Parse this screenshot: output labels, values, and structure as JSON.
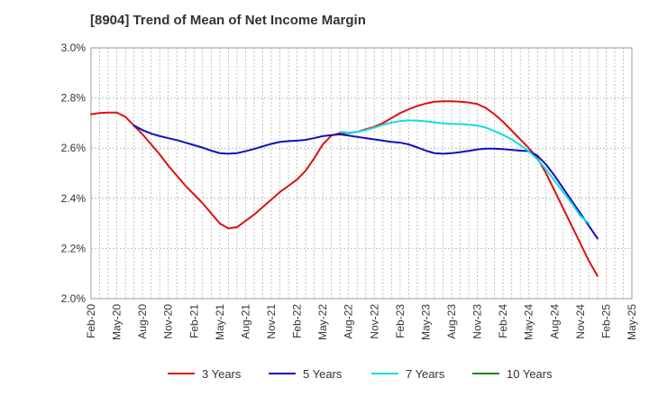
{
  "chart_data": {
    "type": "line",
    "title": "[8904]  Trend of Mean of Net Income Margin",
    "xlabel": "",
    "ylabel": "",
    "x_ticks": [
      "Feb-20",
      "May-20",
      "Aug-20",
      "Nov-20",
      "Feb-21",
      "May-21",
      "Aug-21",
      "Nov-21",
      "Feb-22",
      "May-22",
      "Aug-22",
      "Nov-22",
      "Feb-23",
      "May-23",
      "Aug-23",
      "Nov-23",
      "Feb-24",
      "May-24",
      "Aug-24",
      "Nov-24",
      "Feb-25",
      "May-25"
    ],
    "y_ticks": [
      "2.0%",
      "2.2%",
      "2.4%",
      "2.6%",
      "2.8%",
      "3.0%"
    ],
    "ylim": [
      2.0,
      3.0
    ],
    "grid": true,
    "legend_position": "bottom",
    "series": [
      {
        "name": "3 Years",
        "color": "#dd1111",
        "points": [
          [
            "2020-02",
            2.735
          ],
          [
            "2020-03",
            2.74
          ],
          [
            "2020-04",
            2.742
          ],
          [
            "2020-05",
            2.742
          ],
          [
            "2020-06",
            2.725
          ],
          [
            "2020-07",
            2.69
          ],
          [
            "2020-08",
            2.655
          ],
          [
            "2020-09",
            2.615
          ],
          [
            "2020-10",
            2.575
          ],
          [
            "2020-11",
            2.53
          ],
          [
            "2020-12",
            2.49
          ],
          [
            "2021-01",
            2.45
          ],
          [
            "2021-02",
            2.415
          ],
          [
            "2021-03",
            2.38
          ],
          [
            "2021-04",
            2.34
          ],
          [
            "2021-05",
            2.3
          ],
          [
            "2021-06",
            2.28
          ],
          [
            "2021-07",
            2.285
          ],
          [
            "2021-08",
            2.31
          ],
          [
            "2021-09",
            2.335
          ],
          [
            "2021-10",
            2.365
          ],
          [
            "2021-11",
            2.395
          ],
          [
            "2021-12",
            2.425
          ],
          [
            "2022-01",
            2.45
          ],
          [
            "2022-02",
            2.475
          ],
          [
            "2022-03",
            2.51
          ],
          [
            "2022-04",
            2.56
          ],
          [
            "2022-05",
            2.615
          ],
          [
            "2022-06",
            2.65
          ],
          [
            "2022-07",
            2.66
          ],
          [
            "2022-08",
            2.66
          ],
          [
            "2022-09",
            2.665
          ],
          [
            "2022-10",
            2.675
          ],
          [
            "2022-11",
            2.685
          ],
          [
            "2022-12",
            2.7
          ],
          [
            "2023-01",
            2.72
          ],
          [
            "2023-02",
            2.74
          ],
          [
            "2023-03",
            2.755
          ],
          [
            "2023-04",
            2.768
          ],
          [
            "2023-05",
            2.778
          ],
          [
            "2023-06",
            2.785
          ],
          [
            "2023-07",
            2.787
          ],
          [
            "2023-08",
            2.787
          ],
          [
            "2023-09",
            2.785
          ],
          [
            "2023-10",
            2.782
          ],
          [
            "2023-11",
            2.776
          ],
          [
            "2023-12",
            2.76
          ],
          [
            "2024-01",
            2.735
          ],
          [
            "2024-02",
            2.705
          ],
          [
            "2024-03",
            2.67
          ],
          [
            "2024-04",
            2.635
          ],
          [
            "2024-05",
            2.6
          ],
          [
            "2024-06",
            2.56
          ],
          [
            "2024-07",
            2.5
          ],
          [
            "2024-08",
            2.43
          ],
          [
            "2024-09",
            2.36
          ],
          [
            "2024-10",
            2.29
          ],
          [
            "2024-11",
            2.22
          ],
          [
            "2024-12",
            2.15
          ],
          [
            "2025-01",
            2.09
          ]
        ]
      },
      {
        "name": "5 Years",
        "color": "#1111bb",
        "points": [
          [
            "2020-07",
            2.69
          ],
          [
            "2020-08",
            2.672
          ],
          [
            "2020-09",
            2.658
          ],
          [
            "2020-10",
            2.648
          ],
          [
            "2020-11",
            2.64
          ],
          [
            "2020-12",
            2.632
          ],
          [
            "2021-01",
            2.622
          ],
          [
            "2021-02",
            2.612
          ],
          [
            "2021-03",
            2.602
          ],
          [
            "2021-04",
            2.59
          ],
          [
            "2021-05",
            2.58
          ],
          [
            "2021-06",
            2.578
          ],
          [
            "2021-07",
            2.58
          ],
          [
            "2021-08",
            2.588
          ],
          [
            "2021-09",
            2.597
          ],
          [
            "2021-10",
            2.607
          ],
          [
            "2021-11",
            2.617
          ],
          [
            "2021-12",
            2.625
          ],
          [
            "2022-01",
            2.628
          ],
          [
            "2022-02",
            2.63
          ],
          [
            "2022-03",
            2.633
          ],
          [
            "2022-04",
            2.64
          ],
          [
            "2022-05",
            2.648
          ],
          [
            "2022-06",
            2.652
          ],
          [
            "2022-07",
            2.655
          ],
          [
            "2022-08",
            2.65
          ],
          [
            "2022-09",
            2.645
          ],
          [
            "2022-10",
            2.64
          ],
          [
            "2022-11",
            2.635
          ],
          [
            "2022-12",
            2.63
          ],
          [
            "2023-01",
            2.625
          ],
          [
            "2023-02",
            2.622
          ],
          [
            "2023-03",
            2.615
          ],
          [
            "2023-04",
            2.603
          ],
          [
            "2023-05",
            2.59
          ],
          [
            "2023-06",
            2.58
          ],
          [
            "2023-07",
            2.578
          ],
          [
            "2023-08",
            2.58
          ],
          [
            "2023-09",
            2.584
          ],
          [
            "2023-10",
            2.589
          ],
          [
            "2023-11",
            2.595
          ],
          [
            "2023-12",
            2.598
          ],
          [
            "2024-01",
            2.598
          ],
          [
            "2024-02",
            2.596
          ],
          [
            "2024-03",
            2.593
          ],
          [
            "2024-04",
            2.59
          ],
          [
            "2024-05",
            2.588
          ],
          [
            "2024-06",
            2.57
          ],
          [
            "2024-07",
            2.535
          ],
          [
            "2024-08",
            2.49
          ],
          [
            "2024-09",
            2.44
          ],
          [
            "2024-10",
            2.39
          ],
          [
            "2024-11",
            2.34
          ],
          [
            "2024-12",
            2.29
          ],
          [
            "2025-01",
            2.24
          ]
        ]
      },
      {
        "name": "7 Years",
        "color": "#11dddd",
        "points": [
          [
            "2022-07",
            2.665
          ],
          [
            "2022-08",
            2.662
          ],
          [
            "2022-09",
            2.665
          ],
          [
            "2022-10",
            2.672
          ],
          [
            "2022-11",
            2.682
          ],
          [
            "2022-12",
            2.693
          ],
          [
            "2023-01",
            2.702
          ],
          [
            "2023-02",
            2.708
          ],
          [
            "2023-03",
            2.711
          ],
          [
            "2023-04",
            2.71
          ],
          [
            "2023-05",
            2.707
          ],
          [
            "2023-06",
            2.703
          ],
          [
            "2023-07",
            2.699
          ],
          [
            "2023-08",
            2.697
          ],
          [
            "2023-09",
            2.696
          ],
          [
            "2023-10",
            2.694
          ],
          [
            "2023-11",
            2.69
          ],
          [
            "2023-12",
            2.682
          ],
          [
            "2024-01",
            2.668
          ],
          [
            "2024-02",
            2.653
          ],
          [
            "2024-03",
            2.635
          ],
          [
            "2024-04",
            2.612
          ],
          [
            "2024-05",
            2.588
          ],
          [
            "2024-06",
            2.555
          ],
          [
            "2024-07",
            2.515
          ],
          [
            "2024-08",
            2.47
          ],
          [
            "2024-09",
            2.425
          ],
          [
            "2024-10",
            2.38
          ],
          [
            "2024-11",
            2.33
          ],
          [
            "2024-12",
            2.3
          ]
        ]
      },
      {
        "name": "10 Years",
        "color": "#118811",
        "points": []
      }
    ]
  }
}
